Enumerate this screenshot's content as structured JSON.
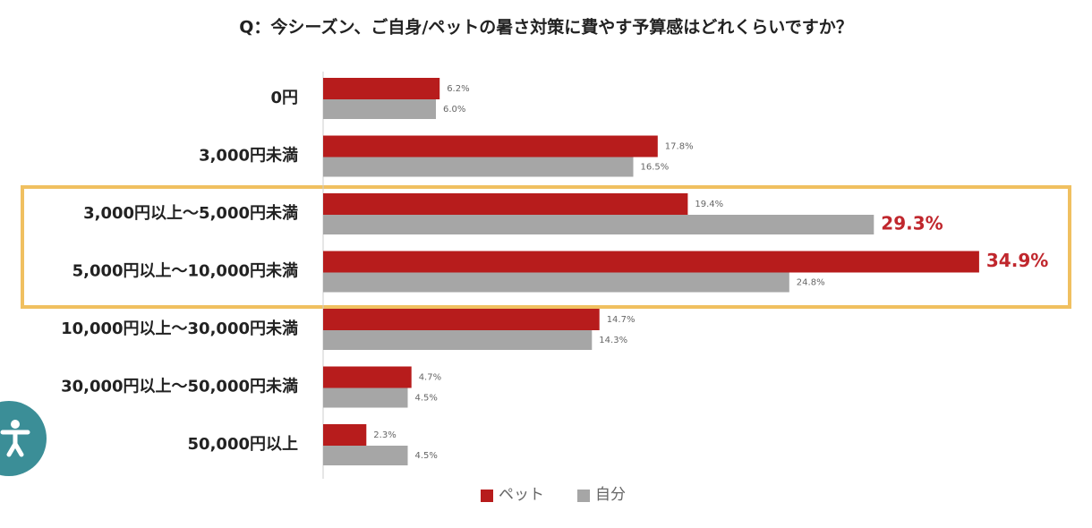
{
  "chart_data": {
    "type": "bar",
    "orientation": "horizontal",
    "title": "Q：今シーズン、ご自身/ペットの暑さ対策に費やす予算感はどれくらいですか？",
    "categories": [
      "0円",
      "3,000円未満",
      "3,000円以上～5,000円未満",
      "5,000円以上～10,000円未満",
      "10,000円以上～30,000円未満",
      "30,000円以上～50,000円未満",
      "50,000円以上"
    ],
    "series": [
      {
        "name": "ペット",
        "color": "#b71c1c",
        "values": [
          6.2,
          17.8,
          19.4,
          34.9,
          14.7,
          4.7,
          2.3
        ],
        "value_labels": [
          "6.2%",
          "17.8%",
          "19.4%",
          "34.9%",
          "14.7%",
          "4.7%",
          "2.3%"
        ]
      },
      {
        "name": "自分",
        "color": "#a6a6a6",
        "values": [
          6.0,
          16.5,
          29.3,
          24.8,
          14.3,
          4.5,
          4.5
        ],
        "value_labels": [
          "6.0%",
          "16.5%",
          "29.3%",
          "24.8%",
          "14.3%",
          "4.5%",
          "4.5%"
        ]
      }
    ],
    "xlim": [
      0,
      40
    ],
    "legend": "bottom"
  }
}
